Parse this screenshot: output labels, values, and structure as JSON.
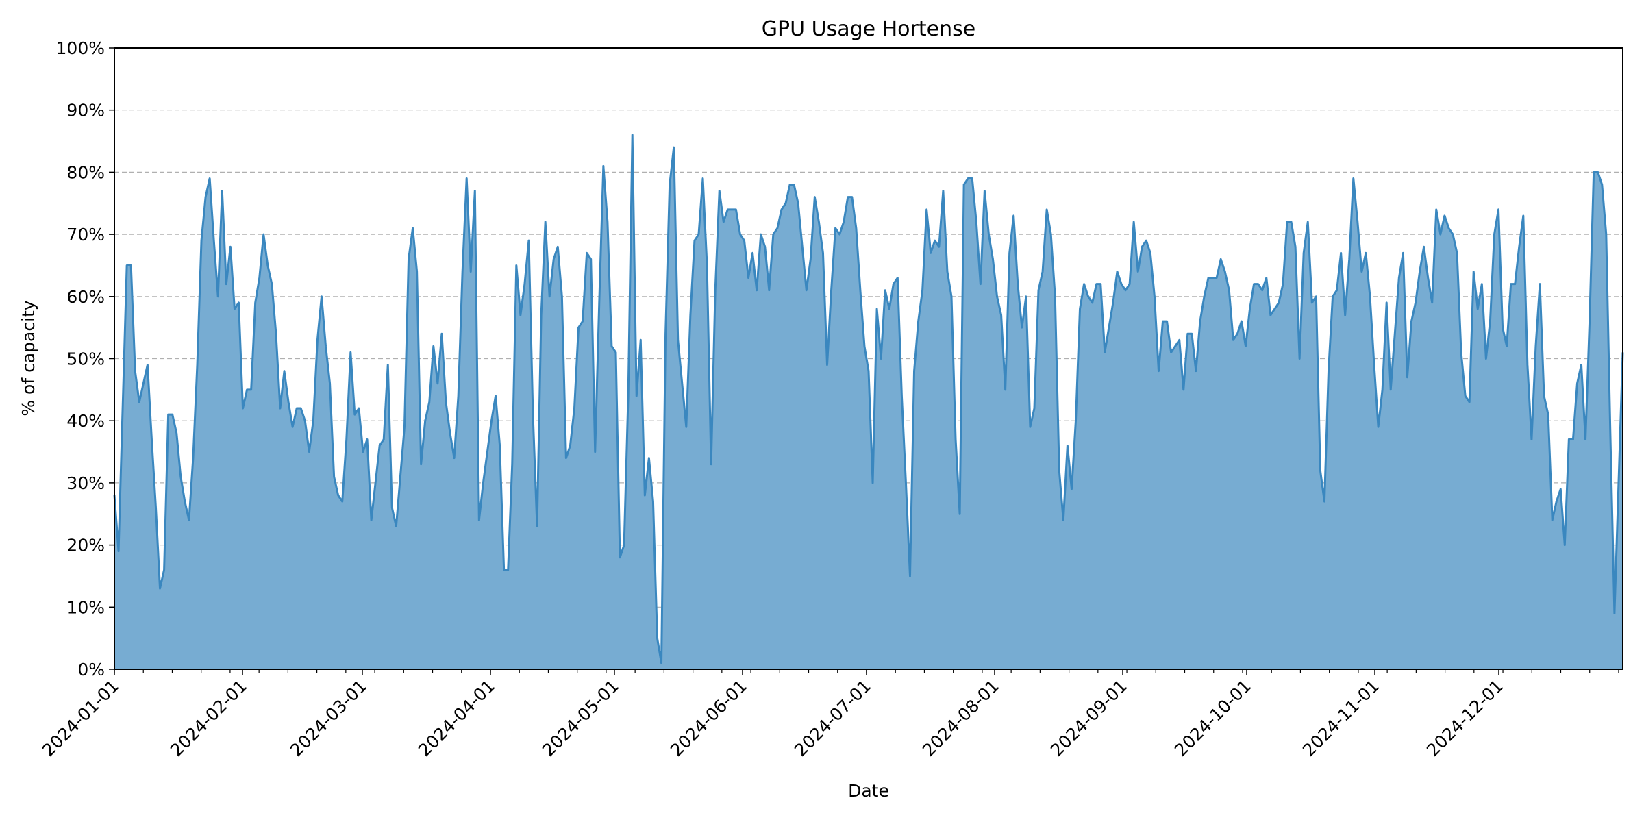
{
  "chart_data": {
    "type": "area",
    "title": "GPU Usage Hortense",
    "xlabel": "Date",
    "ylabel": "% of capacity",
    "x_start": "2024-01-01",
    "x_end": "2024-12-31",
    "ylim": [
      0,
      100
    ],
    "y_ticks": [
      "0%",
      "10%",
      "20%",
      "30%",
      "40%",
      "50%",
      "60%",
      "70%",
      "80%",
      "90%",
      "100%"
    ],
    "x_ticks": [
      "2024-01-01",
      "2024-02-01",
      "2024-03-01",
      "2024-04-01",
      "2024-05-01",
      "2024-06-01",
      "2024-07-01",
      "2024-08-01",
      "2024-09-01",
      "2024-10-01",
      "2024-11-01",
      "2024-12-01"
    ],
    "grid": "horizontal dashed",
    "colors": {
      "line": "#3a87bf",
      "fill": "#77acd2"
    },
    "series": [
      {
        "values": [
          28,
          19,
          42,
          65,
          65,
          48,
          43,
          46,
          49,
          37,
          26,
          13,
          16,
          41,
          41,
          38,
          31,
          27,
          24,
          34,
          49,
          69,
          76,
          79,
          69,
          60,
          77,
          62,
          68,
          58,
          59,
          42,
          45,
          45,
          59,
          63,
          70,
          65,
          62,
          54,
          42,
          48,
          43,
          39,
          42,
          42,
          40,
          35,
          40,
          53,
          60,
          52,
          46,
          31,
          28,
          27,
          37,
          51,
          41,
          42,
          35,
          37,
          24,
          30,
          36,
          37,
          49,
          26,
          23,
          31,
          39,
          66,
          71,
          64,
          33,
          40,
          43,
          52,
          46,
          54,
          43,
          38,
          34,
          44,
          64,
          79,
          64,
          77,
          24,
          30,
          35,
          40,
          44,
          36,
          16,
          16,
          33,
          65,
          57,
          62,
          69,
          41,
          23,
          57,
          72,
          60,
          66,
          68,
          60,
          34,
          36,
          42,
          55,
          56,
          67,
          66,
          35,
          59,
          81,
          72,
          52,
          51,
          18,
          20,
          44,
          86,
          44,
          53,
          28,
          34,
          27,
          5,
          1,
          54,
          78,
          84,
          53,
          46,
          39,
          57,
          69,
          70,
          79,
          65,
          33,
          61,
          77,
          72,
          74,
          74,
          74,
          70,
          69,
          63,
          67,
          61,
          70,
          68,
          61,
          70,
          71,
          74,
          75,
          78,
          78,
          75,
          68,
          61,
          66,
          76,
          72,
          67,
          49,
          61,
          71,
          70,
          72,
          76,
          76,
          71,
          61,
          52,
          48,
          30,
          58,
          50,
          61,
          58,
          62,
          63,
          44,
          30,
          15,
          48,
          56,
          61,
          74,
          67,
          69,
          68,
          77,
          64,
          60,
          37,
          25,
          78,
          79,
          79,
          72,
          62,
          77,
          70,
          66,
          60,
          57,
          45,
          67,
          73,
          62,
          55,
          60,
          39,
          42,
          61,
          64,
          74,
          70,
          60,
          32,
          24,
          36,
          29,
          40,
          58,
          62,
          60,
          59,
          62,
          62,
          51,
          55,
          59,
          64,
          62,
          61,
          62,
          72,
          64,
          68,
          69,
          67,
          60,
          48,
          56,
          56,
          51,
          52,
          53,
          45,
          54,
          54,
          48,
          56,
          60,
          63,
          63,
          63,
          66,
          64,
          61,
          53,
          54,
          56,
          52,
          58,
          62,
          62,
          61,
          63,
          57,
          58,
          59,
          62,
          72,
          72,
          68,
          50,
          67,
          72,
          59,
          60,
          32,
          27,
          48,
          60,
          61,
          67,
          57,
          66,
          79,
          72,
          64,
          67,
          60,
          49,
          39,
          45,
          59,
          45,
          54,
          63,
          67,
          47,
          56,
          59,
          64,
          68,
          63,
          59,
          74,
          70,
          73,
          71,
          70,
          67,
          51,
          44,
          43,
          64,
          58,
          62,
          50,
          56,
          70,
          74,
          55,
          52,
          62,
          62,
          68,
          73,
          49,
          37,
          52,
          62,
          44,
          41,
          24,
          27,
          29,
          20,
          37,
          37,
          46,
          49,
          37,
          56,
          80,
          80,
          78,
          70,
          38,
          9,
          30,
          51
        ]
      }
    ]
  }
}
